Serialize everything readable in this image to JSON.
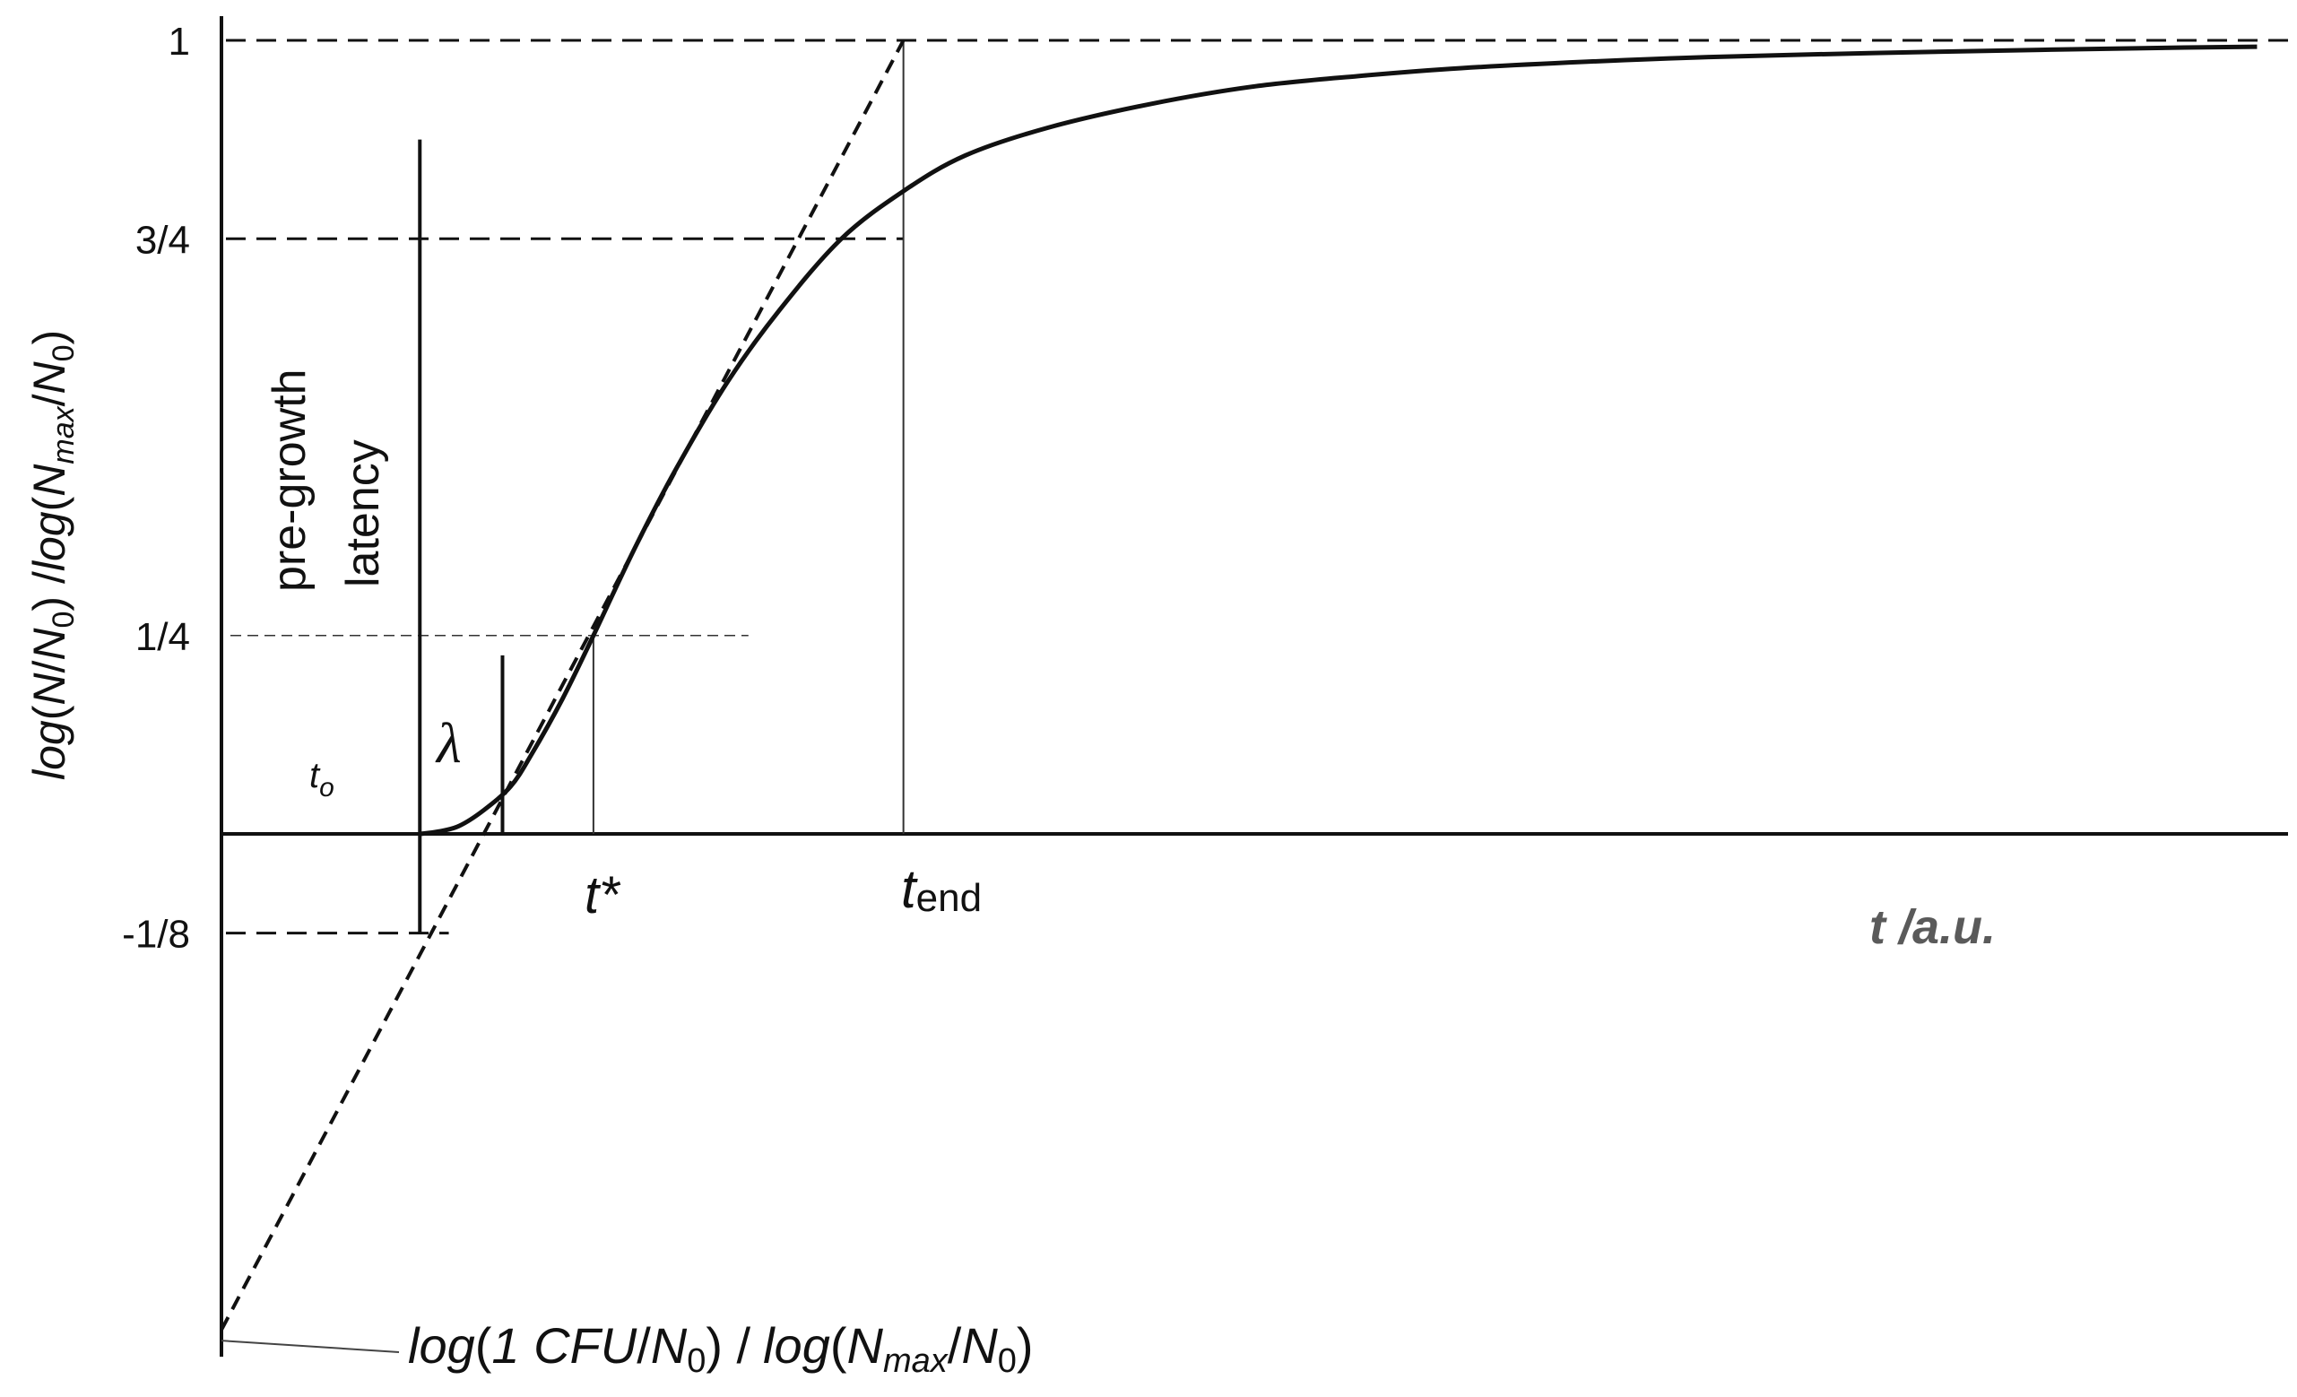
{
  "chart_data": {
    "type": "line",
    "title": "",
    "xlabel": "t /a.u.",
    "ylabel_parts": {
      "a": "log",
      "b": "(",
      "c": "N",
      "d": "/",
      "e": "N",
      "e_sub": "0",
      "f": ") /",
      "g": "log",
      "h": "(",
      "i": "N",
      "i_sub": "max",
      "j": "/",
      "k": "N",
      "k_sub": "0",
      "l": ")"
    },
    "y_ticks": [
      {
        "value": 1,
        "label": "1"
      },
      {
        "value": 0.75,
        "label": "3/4"
      },
      {
        "value": 0.25,
        "label": "1/4"
      },
      {
        "value": -0.125,
        "label": "-1/8"
      }
    ],
    "ylim": [
      -0.625,
      1.03
    ],
    "xlim": [
      0,
      100
    ],
    "series": [
      {
        "kind": "growth-curve",
        "x": [
          9.6,
          10.5,
          11.5,
          12.7,
          14.0,
          15.0,
          16.5,
          18.0,
          20.0,
          22.0,
          24.5,
          27.0,
          30.0,
          33.0,
          36.0,
          40.0,
          45.0,
          50.0,
          55.0,
          60.0,
          66.0,
          72.0,
          80.0,
          88.0,
          95.0,
          98.5
        ],
        "y": [
          0.0,
          0.003,
          0.01,
          0.03,
          0.06,
          0.1,
          0.17,
          0.25,
          0.36,
          0.46,
          0.57,
          0.66,
          0.75,
          0.81,
          0.855,
          0.89,
          0.92,
          0.942,
          0.955,
          0.965,
          0.973,
          0.979,
          0.984,
          0.988,
          0.991,
          0.992
        ]
      },
      {
        "kind": "tangent",
        "x": [
          0.0,
          33.0
        ],
        "y": [
          -0.625,
          1.0
        ]
      }
    ],
    "guides": {
      "t0_line": {
        "x": 9.6,
        "y_top": 0.875,
        "y_bottom": -0.125
      },
      "lambda_line": {
        "x": 13.6,
        "y_top": 0.225,
        "y_bottom": 0.0
      },
      "tstar_line": {
        "x": 18.0,
        "y": 0.25
      },
      "tend_line": {
        "x": 33.0,
        "y_top": 1.0
      },
      "h_quarter": {
        "x_end": 25.5,
        "y": 0.25
      },
      "h_three_quarter": {
        "x_end": 33.0,
        "y": 0.75
      },
      "h_one": {
        "x_end": 100,
        "y": 1.0
      },
      "h_minus_eighth": {
        "x_start": 0,
        "x_end": 11.0,
        "y": -0.125
      }
    },
    "annotations": {
      "pre_growth_1": "pre-growth",
      "pre_growth_2": "latency",
      "t0": "t",
      "t0_sub": "o",
      "lambda": "λ",
      "tstar": "t*",
      "tend": "t",
      "tend_sub": "end",
      "intercept_parts": {
        "a": "log",
        "b": "(",
        "c": "1 CFU",
        "d": "/",
        "e": "N",
        "e_sub": "0",
        "f": ") /",
        "g": "log",
        "h": "(",
        "i": "N",
        "i_sub": "max",
        "j": "/",
        "k": "N",
        "k_sub": "0",
        "l": ")"
      }
    },
    "grid": false,
    "legend": "none"
  }
}
